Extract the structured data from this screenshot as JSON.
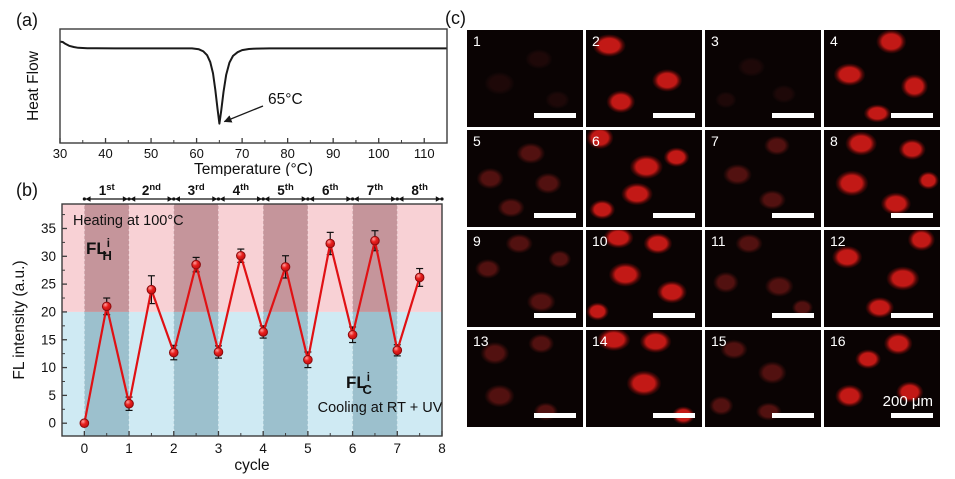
{
  "figure": {
    "panels": {
      "a": {
        "label": "(a)"
      },
      "b": {
        "label": "(b)"
      },
      "c": {
        "label": "(c)"
      }
    }
  },
  "chart_data": [
    {
      "id": "dsc-curve",
      "panel": "a",
      "type": "line",
      "title": "",
      "xlabel": "Temperature (°C)",
      "ylabel": "Heat Flow",
      "xlim": [
        30,
        115
      ],
      "xticks": [
        30,
        40,
        50,
        60,
        70,
        80,
        90,
        100,
        110
      ],
      "x_minor_step": 5,
      "annotation": {
        "text": "65°C",
        "x": 65
      },
      "line_color": "#1a1a1a",
      "points": [
        [
          30,
          0.09
        ],
        [
          30.6,
          0.085
        ],
        [
          31.2,
          0.06
        ],
        [
          32,
          0.035
        ],
        [
          33,
          0.018
        ],
        [
          34,
          0.008
        ],
        [
          36,
          0.003
        ],
        [
          38,
          0.001
        ],
        [
          42,
          0
        ],
        [
          50,
          0
        ],
        [
          56,
          0
        ],
        [
          59,
          0
        ],
        [
          60.5,
          -0.012
        ],
        [
          61.5,
          -0.04
        ],
        [
          62.3,
          -0.09
        ],
        [
          63,
          -0.18
        ],
        [
          63.6,
          -0.33
        ],
        [
          64.1,
          -0.55
        ],
        [
          64.6,
          -0.8
        ],
        [
          65,
          -1.0
        ],
        [
          65.4,
          -0.83
        ],
        [
          65.9,
          -0.58
        ],
        [
          66.5,
          -0.35
        ],
        [
          67.2,
          -0.19
        ],
        [
          68,
          -0.1
        ],
        [
          69,
          -0.05
        ],
        [
          70,
          -0.022
        ],
        [
          71.5,
          -0.008
        ],
        [
          73,
          -0.002
        ],
        [
          76,
          0
        ],
        [
          85,
          0
        ],
        [
          95,
          0
        ],
        [
          105,
          0
        ],
        [
          115,
          0
        ]
      ]
    },
    {
      "id": "fl-cycling",
      "panel": "b",
      "type": "line",
      "xlabel": "cycle",
      "ylabel": "FL intensity (a.u.)",
      "xlim": [
        -0.5,
        8
      ],
      "ylim": [
        -2.3,
        39.4
      ],
      "xticks": [
        0,
        1,
        2,
        3,
        4,
        5,
        6,
        7,
        8
      ],
      "yticks": [
        0,
        5,
        10,
        15,
        20,
        25,
        30,
        35
      ],
      "x_minor_step": 0.5,
      "y_minor_step": 2.5,
      "boundary_y": 20,
      "series_color": "#e01114",
      "x": [
        0,
        0.5,
        1,
        1.5,
        2,
        2.5,
        3,
        3.5,
        4,
        4.5,
        5,
        5.5,
        6,
        6.5,
        7,
        7.5
      ],
      "y": [
        0,
        21,
        3.5,
        24,
        12.7,
        28.5,
        12.8,
        30.1,
        16.4,
        28.1,
        11.4,
        32.3,
        15.9,
        32.8,
        13.1,
        26.2
      ],
      "yerr": [
        0.3,
        1.5,
        1.2,
        2.5,
        1.3,
        1.3,
        1.1,
        1.2,
        1.1,
        2.0,
        1.4,
        2.0,
        1.4,
        1.8,
        1.0,
        1.6
      ],
      "cycle_labels": [
        {
          "n": "1",
          "suf": "st"
        },
        {
          "n": "2",
          "suf": "nd"
        },
        {
          "n": "3",
          "suf": "rd"
        },
        {
          "n": "4",
          "suf": "th"
        },
        {
          "n": "5",
          "suf": "th"
        },
        {
          "n": "6",
          "suf": "th"
        },
        {
          "n": "7",
          "suf": "th"
        },
        {
          "n": "8",
          "suf": "th"
        }
      ],
      "regions": {
        "heating_label": "Heating at 100°C",
        "cooling_label": "Cooling at RT + UV",
        "fl_heating": {
          "base": "FL",
          "sup": "i",
          "sub": "H"
        },
        "fl_cooling": {
          "base": "FL",
          "sup": "i",
          "sub": "C"
        },
        "dark_cycles": [
          1,
          3,
          5,
          7
        ],
        "colors": {
          "pink": "#f8d1d5",
          "pink_dark": "#c5959b",
          "blue": "#cfeaf3",
          "blue_dark": "#9cc0cd"
        }
      }
    }
  ],
  "micrographs": {
    "scale_label": "200 μm",
    "palette": {
      "faint": {
        "core": "#1e0808",
        "edge": "rgba(30,9,9,0.5)"
      },
      "dim": {
        "core": "#521110",
        "edge": "rgba(70,14,12,0.5)"
      },
      "bright": {
        "core": "#c21916",
        "edge": "rgba(130,12,10,0.55)"
      }
    },
    "tiles": [
      {
        "n": "1",
        "intensity": "faint",
        "blobs": [
          [
            28,
            55,
            20,
            15
          ],
          [
            62,
            30,
            18,
            13
          ],
          [
            78,
            72,
            16,
            12
          ]
        ]
      },
      {
        "n": "2",
        "intensity": "bright",
        "blobs": [
          [
            20,
            16,
            22,
            15
          ],
          [
            70,
            52,
            20,
            15
          ],
          [
            30,
            74,
            19,
            15
          ]
        ]
      },
      {
        "n": "3",
        "intensity": "faint",
        "blobs": [
          [
            40,
            38,
            18,
            13
          ],
          [
            68,
            66,
            16,
            12
          ],
          [
            18,
            72,
            14,
            11
          ]
        ]
      },
      {
        "n": "4",
        "intensity": "bright",
        "blobs": [
          [
            58,
            12,
            20,
            16
          ],
          [
            22,
            46,
            21,
            15
          ],
          [
            78,
            58,
            18,
            16
          ],
          [
            46,
            86,
            18,
            12
          ]
        ]
      },
      {
        "n": "5",
        "intensity": "dim",
        "blobs": [
          [
            55,
            24,
            19,
            14
          ],
          [
            20,
            50,
            18,
            14
          ],
          [
            70,
            55,
            18,
            14
          ],
          [
            38,
            80,
            18,
            13
          ]
        ]
      },
      {
        "n": "6",
        "intensity": "bright",
        "blobs": [
          [
            12,
            8,
            18,
            15
          ],
          [
            52,
            38,
            22,
            16
          ],
          [
            78,
            28,
            17,
            13
          ],
          [
            44,
            66,
            21,
            15
          ],
          [
            14,
            82,
            17,
            13
          ]
        ]
      },
      {
        "n": "7",
        "intensity": "dim",
        "blobs": [
          [
            62,
            16,
            17,
            13
          ],
          [
            28,
            46,
            19,
            14
          ],
          [
            58,
            72,
            18,
            13
          ]
        ]
      },
      {
        "n": "8",
        "intensity": "bright",
        "blobs": [
          [
            32,
            14,
            21,
            16
          ],
          [
            76,
            20,
            18,
            14
          ],
          [
            24,
            55,
            22,
            17
          ],
          [
            62,
            76,
            20,
            15
          ],
          [
            90,
            52,
            14,
            12
          ]
        ]
      },
      {
        "n": "9",
        "intensity": "dim",
        "blobs": [
          [
            45,
            14,
            18,
            13
          ],
          [
            18,
            40,
            17,
            13
          ],
          [
            64,
            74,
            19,
            14
          ],
          [
            80,
            30,
            15,
            12
          ]
        ]
      },
      {
        "n": "10",
        "intensity": "bright",
        "blobs": [
          [
            28,
            8,
            20,
            14
          ],
          [
            62,
            14,
            19,
            14
          ],
          [
            34,
            46,
            22,
            16
          ],
          [
            74,
            64,
            20,
            15
          ],
          [
            10,
            84,
            15,
            12
          ]
        ]
      },
      {
        "n": "11",
        "intensity": "dim",
        "blobs": [
          [
            38,
            14,
            18,
            13
          ],
          [
            18,
            54,
            17,
            14
          ],
          [
            64,
            58,
            19,
            14
          ],
          [
            84,
            80,
            14,
            11
          ]
        ]
      },
      {
        "n": "12",
        "intensity": "bright",
        "blobs": [
          [
            84,
            10,
            18,
            15
          ],
          [
            20,
            28,
            20,
            15
          ],
          [
            68,
            50,
            22,
            16
          ],
          [
            48,
            80,
            19,
            14
          ]
        ]
      },
      {
        "n": "13",
        "intensity": "dim",
        "blobs": [
          [
            24,
            24,
            19,
            15
          ],
          [
            64,
            14,
            17,
            13
          ],
          [
            28,
            68,
            20,
            15
          ],
          [
            68,
            84,
            16,
            12
          ]
        ]
      },
      {
        "n": "14",
        "intensity": "bright",
        "blobs": [
          [
            24,
            10,
            22,
            15
          ],
          [
            60,
            12,
            21,
            15
          ],
          [
            50,
            55,
            23,
            17
          ],
          [
            84,
            88,
            15,
            12
          ]
        ]
      },
      {
        "n": "15",
        "intensity": "dim",
        "blobs": [
          [
            25,
            20,
            18,
            13
          ],
          [
            58,
            44,
            19,
            15
          ],
          [
            14,
            78,
            16,
            13
          ],
          [
            55,
            84,
            17,
            12
          ]
        ]
      },
      {
        "n": "16",
        "intensity": "bright",
        "blobs": [
          [
            64,
            14,
            19,
            15
          ],
          [
            38,
            30,
            17,
            13
          ],
          [
            22,
            68,
            19,
            15
          ],
          [
            74,
            64,
            18,
            14
          ]
        ]
      }
    ]
  }
}
